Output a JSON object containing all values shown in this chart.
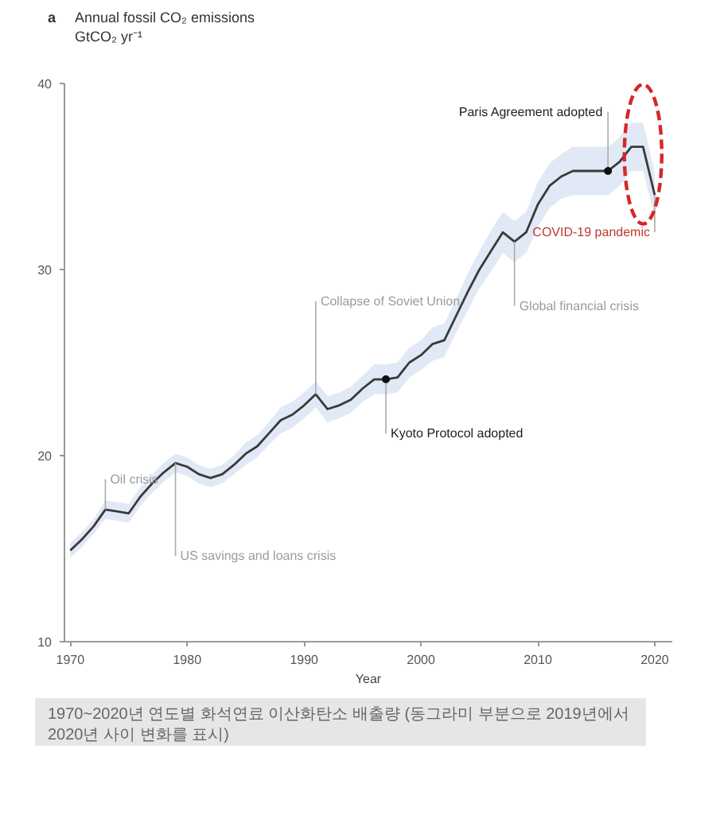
{
  "chart_data": {
    "type": "line",
    "title": "Annual fossil CO₂ emissions",
    "ylabel": "GtCO₂ yr⁻¹",
    "xlabel": "Year",
    "x": [
      1970,
      1971,
      1972,
      1973,
      1974,
      1975,
      1976,
      1977,
      1978,
      1979,
      1980,
      1981,
      1982,
      1983,
      1984,
      1985,
      1986,
      1987,
      1988,
      1989,
      1990,
      1991,
      1992,
      1993,
      1994,
      1995,
      1996,
      1997,
      1998,
      1999,
      2000,
      2001,
      2002,
      2003,
      2004,
      2005,
      2006,
      2007,
      2008,
      2009,
      2010,
      2011,
      2012,
      2013,
      2014,
      2015,
      2016,
      2017,
      2018,
      2019,
      2020
    ],
    "series": [
      {
        "color": "#3a3a3a",
        "values": [
          14.9,
          15.5,
          16.2,
          17.1,
          17.0,
          16.9,
          17.8,
          18.5,
          19.1,
          19.6,
          19.4,
          19.0,
          18.8,
          19.0,
          19.5,
          20.1,
          20.5,
          21.2,
          21.9,
          22.2,
          22.7,
          23.3,
          22.5,
          22.7,
          23.0,
          23.6,
          24.1,
          24.1,
          24.2,
          25.0,
          25.4,
          26.0,
          26.2,
          27.5,
          28.8,
          30.0,
          31.0,
          32.0,
          31.5,
          32.0,
          33.5,
          34.5,
          35.0,
          35.3,
          35.3,
          35.3,
          35.3,
          35.8,
          36.6,
          36.6,
          34.0
        ],
        "lower": [
          14.5,
          15.1,
          15.8,
          16.6,
          16.5,
          16.4,
          17.3,
          18.0,
          18.6,
          19.1,
          18.9,
          18.5,
          18.3,
          18.5,
          19.0,
          19.5,
          19.9,
          20.6,
          21.2,
          21.5,
          22.0,
          22.6,
          21.8,
          22.0,
          22.3,
          22.9,
          23.3,
          23.3,
          23.4,
          24.2,
          24.6,
          25.1,
          25.3,
          26.6,
          27.8,
          29.0,
          29.9,
          30.9,
          30.4,
          30.9,
          32.3,
          33.3,
          33.8,
          34.0,
          34.0,
          34.0,
          34.0,
          34.5,
          35.3,
          35.3,
          32.8
        ],
        "upper": [
          15.3,
          15.9,
          16.6,
          17.6,
          17.5,
          17.4,
          18.3,
          19.0,
          19.6,
          20.1,
          19.9,
          19.5,
          19.3,
          19.5,
          20.0,
          20.7,
          21.1,
          21.8,
          22.6,
          22.9,
          23.4,
          24.0,
          23.2,
          23.4,
          23.7,
          24.3,
          24.9,
          24.9,
          25.0,
          25.8,
          26.2,
          26.9,
          27.1,
          28.4,
          29.8,
          31.0,
          32.1,
          33.1,
          32.6,
          33.1,
          34.7,
          35.7,
          36.2,
          36.6,
          36.6,
          36.6,
          36.6,
          37.1,
          37.9,
          37.9,
          35.2
        ]
      }
    ],
    "xlim": [
      1969.5,
      2021.5
    ],
    "xticks": [
      1970,
      1980,
      1990,
      2000,
      2010,
      2020
    ],
    "ylim": [
      10,
      40
    ],
    "yticks": [
      10,
      20,
      30,
      40
    ],
    "grid": false,
    "annotations": [
      "a",
      {
        "text": "Oil crisis",
        "x": 1973,
        "y": 17.1
      },
      {
        "text": "US savings and loans crisis",
        "x": 1979,
        "y": 19.6
      },
      {
        "text": "Collapse of Soviet Union",
        "x": 1991,
        "y": 23.3
      },
      {
        "text": "Kyoto Protocol adopted",
        "x": 1997,
        "y": 24.1
      },
      {
        "text": "Global financial crisis",
        "x": 2008,
        "y": 31.5
      },
      {
        "text": "Paris Agreement adopted",
        "x": 2016,
        "y": 35.3
      },
      {
        "text": "COVID-19 pandemic",
        "x": 2020,
        "y": 34.0
      },
      "1970~2020년 연도별 화석연료 이산화탄소 배출량 (동그라미 부분으로 2019년에서 2020년 사이 변화를 표시)"
    ]
  }
}
